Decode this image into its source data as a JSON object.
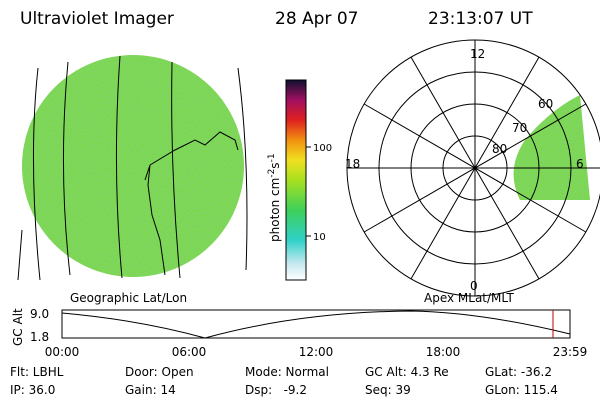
{
  "header": {
    "title": "Ultraviolet Imager",
    "date": "28 Apr 07",
    "time": "23:13:07 UT"
  },
  "left_panel": {
    "label": "Geographic Lat/Lon"
  },
  "colorbar": {
    "unit": [
      "photon cm",
      "-2",
      "s",
      "-1"
    ],
    "ticks": [
      "100",
      "10"
    ]
  },
  "polar": {
    "label": "Apex MLat/MLT",
    "hours": [
      "12",
      "18",
      "6",
      "0"
    ],
    "lats": [
      "60",
      "70",
      "80"
    ]
  },
  "altitude": {
    "axis_label": "GC Alt",
    "yticks": [
      "9.0",
      "1.8"
    ],
    "xticks": [
      "00:00",
      "06:00",
      "12:00",
      "18:00",
      "23:59"
    ]
  },
  "status": [
    [
      "Flt: LBHL",
      "Door: Open",
      "Mode: Normal",
      "GC Alt: 4.3 Re",
      "GLat: -36.2"
    ],
    [
      "IP: 36.0",
      "Gain: 14",
      "Dsp:   -9.2",
      "Seq: 39",
      "GLon: 115.4"
    ]
  ]
}
